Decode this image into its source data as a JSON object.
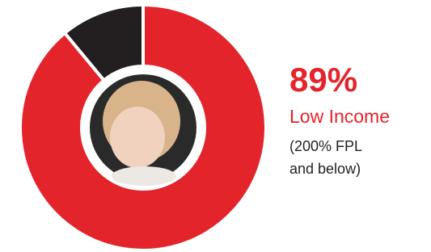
{
  "chart_data": {
    "type": "donut",
    "categories": [
      "Low Income",
      null
    ],
    "values": [
      89,
      11
    ],
    "value_labels": [
      "89%",
      null
    ],
    "colors": [
      "#e3242b",
      "#231f20"
    ],
    "note_lines": [
      "(200% FPL",
      "and below)"
    ]
  }
}
